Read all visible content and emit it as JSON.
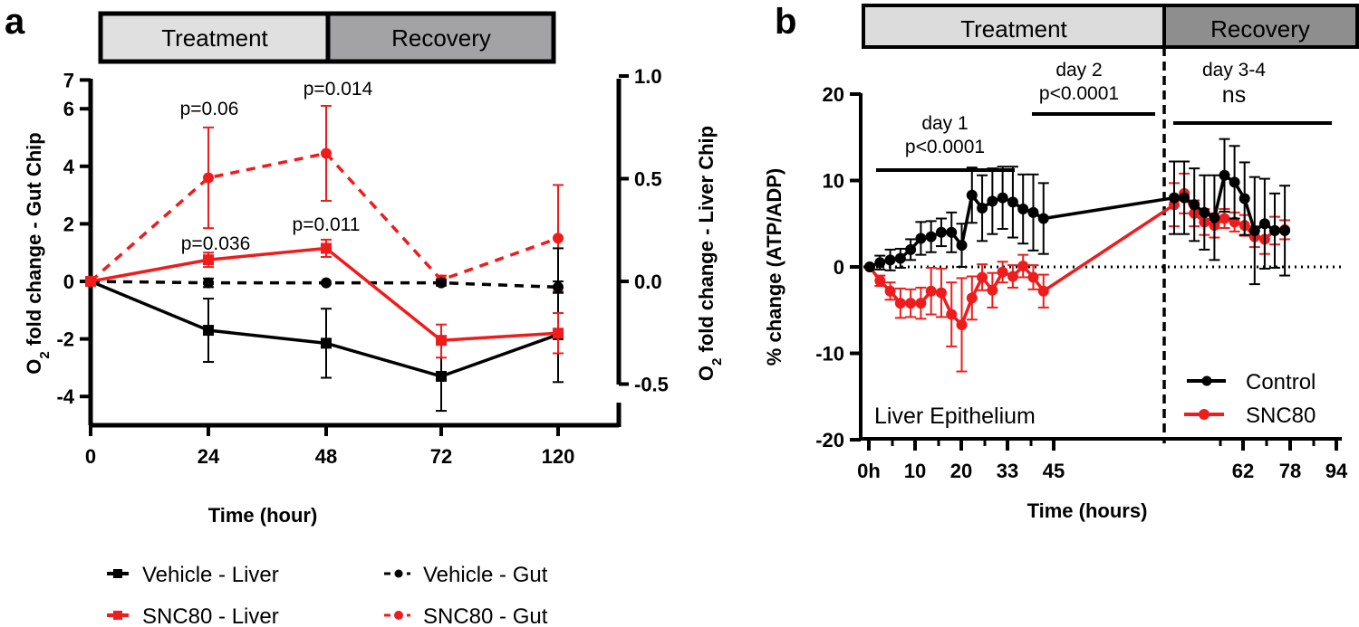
{
  "chart_data": [
    {
      "panel": "a",
      "type": "line",
      "phases": [
        {
          "label": "Treatment",
          "color": "#e0e0e0"
        },
        {
          "label": "Recovery",
          "color": "#a3a3a6"
        }
      ],
      "xlabel": "Time (hour)",
      "x_categories": [
        "0",
        "24",
        "48",
        "72",
        "120"
      ],
      "ylabel_left": {
        "main": "O",
        "sub": "2",
        "rest": " fold change - Gut Chip"
      },
      "ylabel_right": {
        "main": "O",
        "sub": "2",
        "rest": " fold change - Liver Chip"
      },
      "y_left_ticks": [
        "-4",
        "-2",
        "0",
        "2",
        "4",
        "6",
        "7"
      ],
      "y_left_tick_values": [
        -4,
        -2,
        0,
        2,
        4,
        6,
        7
      ],
      "y_left_range": [
        -5,
        7
      ],
      "y_right_ticks": [
        "-0.5",
        "0.0",
        "0.5",
        "1.0"
      ],
      "y_right_tick_values": [
        -0.5,
        0.0,
        0.5,
        1.0
      ],
      "y_right_range": [
        -0.5,
        1.0
      ],
      "series": [
        {
          "name": "Vehicle - Liver",
          "color": "#000000",
          "dash": "solid",
          "marker": "square",
          "values": [
            0,
            -1.7,
            -2.15,
            -3.3,
            -1.85
          ],
          "err_low": [
            0,
            1.1,
            1.2,
            1.2,
            1.65
          ],
          "err_high": [
            0,
            1.1,
            1.2,
            1.2,
            3.0
          ]
        },
        {
          "name": "SNC80 - Liver",
          "color": "#ee1c1c",
          "dash": "solid",
          "marker": "square",
          "values": [
            0,
            0.75,
            1.15,
            -2.05,
            -1.8
          ],
          "err_low": [
            0,
            0.25,
            0.3,
            0.6,
            0.7
          ],
          "err_high": [
            0,
            0.25,
            0.3,
            0.55,
            0.7
          ]
        },
        {
          "name": "Vehicle - Gut",
          "color": "#000000",
          "dash": "dashed",
          "marker": "circle",
          "values": [
            0,
            -0.05,
            -0.05,
            -0.05,
            -0.2
          ],
          "err_low": [
            0,
            0.15,
            0,
            0.1,
            0.2
          ],
          "err_high": [
            0,
            0.15,
            0,
            0.1,
            0.2
          ]
        },
        {
          "name": "SNC80 - Gut",
          "color": "#ee1c1c",
          "dash": "dashed",
          "marker": "circle",
          "values": [
            0,
            3.6,
            4.45,
            0.05,
            1.5
          ],
          "err_low": [
            0,
            1.75,
            1.65,
            0.1,
            1.85
          ],
          "err_high": [
            0,
            1.75,
            1.65,
            0.15,
            1.85
          ]
        }
      ],
      "annotations": [
        {
          "text": "p=0.06",
          "x": "24"
        },
        {
          "text": "p=0.014",
          "x": "48"
        },
        {
          "text": "p=0.036",
          "x": "24"
        },
        {
          "text": "p=0.011",
          "x": "48"
        }
      ],
      "legend": {
        "placement": "bottom",
        "entries": [
          "Vehicle - Liver",
          "Vehicle - Gut",
          "SNC80 - Liver",
          "SNC80 - Gut"
        ]
      }
    },
    {
      "panel": "b",
      "type": "line",
      "phases": [
        {
          "label": "Treatment",
          "color": "#dcdcdc"
        },
        {
          "label": "Recovery",
          "color": "#8e8e8e"
        }
      ],
      "xlabel": "Time (hours)",
      "ylabel": "% change (ATP/ADP)",
      "x_tick_labels": [
        "0h",
        "10",
        "20",
        "33",
        "45",
        "62",
        "78",
        "94"
      ],
      "y_ticks": [
        "-20",
        "-10",
        "0",
        "10",
        "20"
      ],
      "y_tick_values": [
        -20,
        -10,
        0,
        10,
        20
      ],
      "y_range": [
        -20,
        20
      ],
      "inside_label": "Liver Epithelium",
      "series": [
        {
          "name": "Control",
          "color": "#000000",
          "values": [
            0,
            0.5,
            0.8,
            1.0,
            2.0,
            3.3,
            3.5,
            4.0,
            4.0,
            2.5,
            8.3,
            6.8,
            7.6,
            8.0,
            7.5,
            6.7,
            6.3,
            5.6,
            8.0,
            8.0,
            7.2,
            6.3,
            5.7,
            10.6,
            9.8,
            7.9,
            4.2,
            5.0,
            4.2,
            4.2
          ],
          "err": [
            0,
            0.8,
            1.2,
            1.1,
            1.2,
            1.9,
            1.8,
            1.6,
            2.3,
            2.5,
            3.2,
            3.8,
            3.8,
            3.6,
            4.1,
            4.0,
            4.4,
            4.1,
            4.2,
            4.2,
            4.2,
            4.3,
            4.9,
            4.2,
            4.2,
            4.2,
            6.2,
            5.2,
            4.3,
            5.2
          ]
        },
        {
          "name": "SNC80",
          "color": "#ee1c1c",
          "values": [
            0,
            -1.6,
            -2.8,
            -4.2,
            -4.2,
            -4.2,
            -2.8,
            -3.0,
            -5.5,
            -6.7,
            -3.6,
            -1.2,
            -2.7,
            -0.6,
            -1.1,
            0.1,
            -1.2,
            -2.8,
            7.2,
            8.5,
            6.2,
            5.2,
            4.8,
            5.6,
            5.2,
            4.8,
            3.5,
            3.2,
            4.2,
            4.3
          ],
          "err": [
            0,
            0.6,
            1.0,
            1.7,
            1.6,
            1.8,
            2.7,
            2.8,
            3.7,
            5.4,
            2.5,
            1.5,
            2.0,
            1.2,
            1.3,
            1.3,
            1.4,
            1.9,
            2.5,
            2.3,
            1.5,
            1.5,
            1.4,
            1.1,
            1.1,
            1.2,
            1.2,
            1.7,
            1.6,
            1.1
          ]
        }
      ],
      "phase_boundary_index": 17.5,
      "annotations": [
        {
          "line1": "day 1",
          "line2": "p<0.0001"
        },
        {
          "line1": "day 2",
          "line2": "p<0.0001"
        },
        {
          "line1": "day 3-4",
          "line2": "ns"
        }
      ],
      "legend": {
        "placement": "bottom-right",
        "entries": [
          "Control",
          "SNC80"
        ]
      }
    }
  ],
  "labels": {
    "panel_a": "a",
    "panel_b": "b"
  }
}
